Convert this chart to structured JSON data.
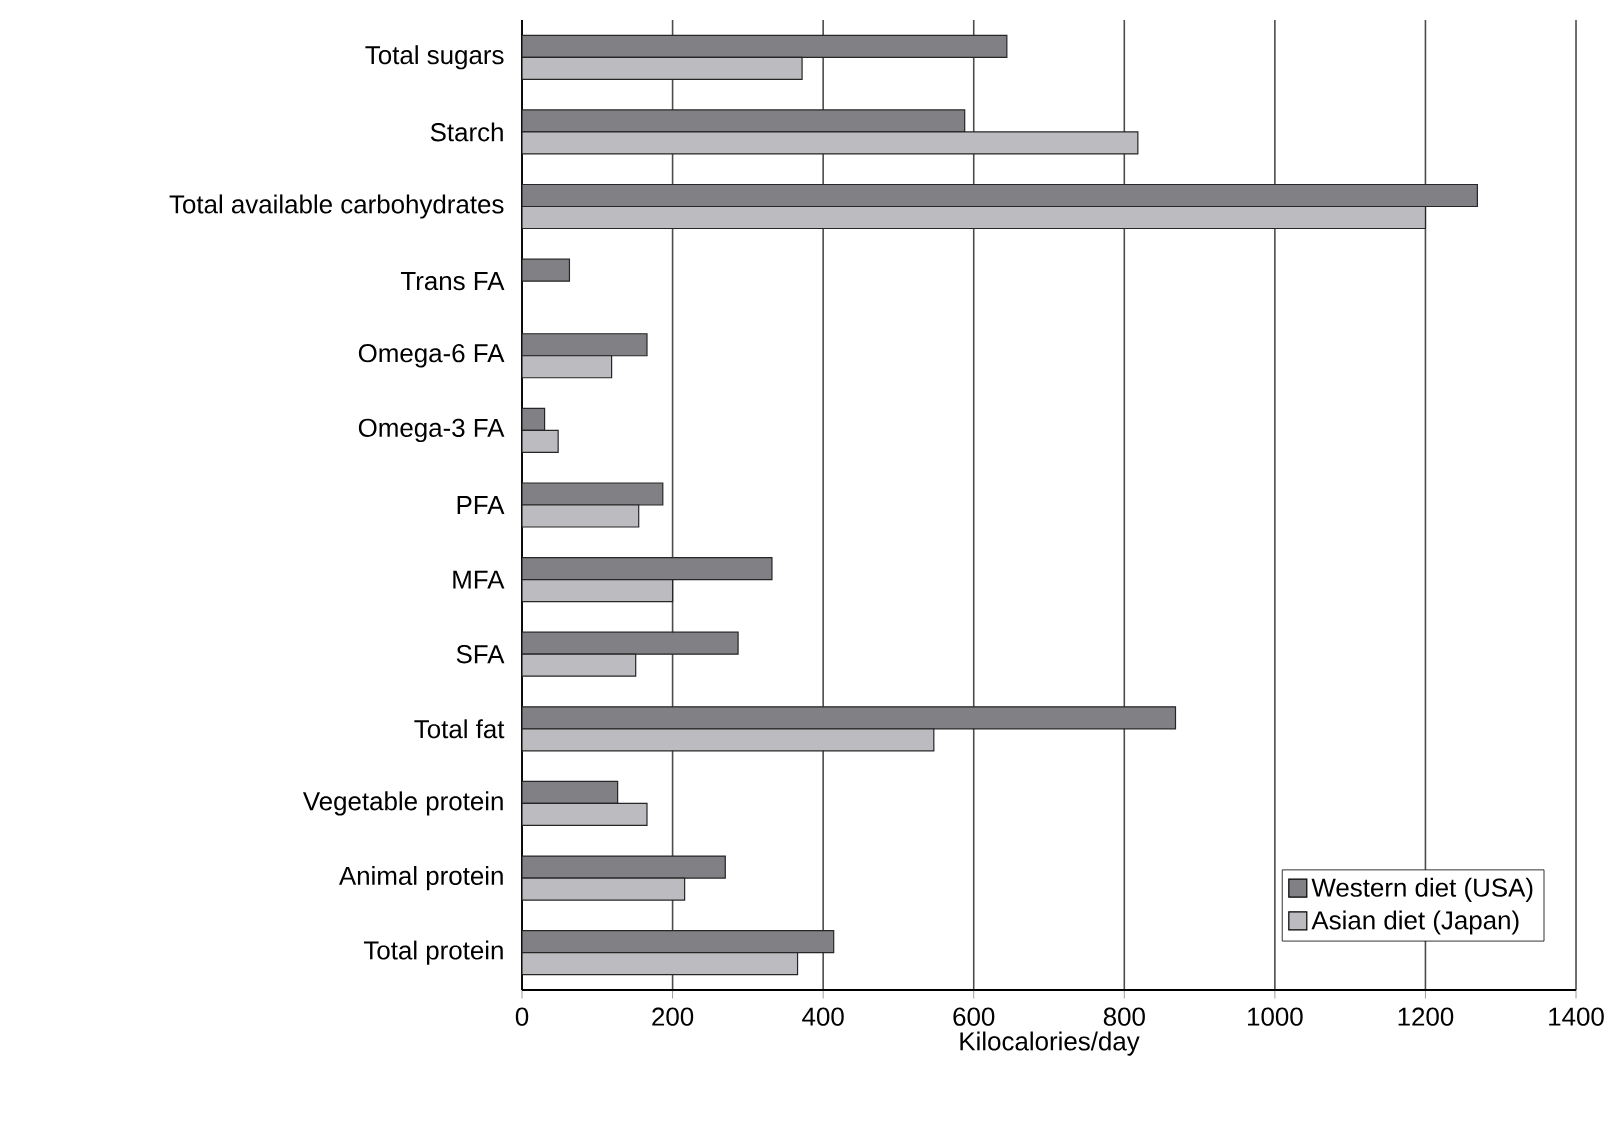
{
  "chart_data": {
    "type": "bar",
    "orientation": "horizontal",
    "xlabel": "Kilocalories/day",
    "categories": [
      "Total sugars",
      "Starch",
      "Total available carbohydrates",
      "Trans FA",
      "Omega-6 FA",
      "Omega-3 FA",
      "PFA",
      "MFA",
      "SFA",
      "Total fat",
      "Vegetable protein",
      "Animal protein",
      "Total protein"
    ],
    "series": [
      {
        "name": "Western diet (USA)",
        "color": "#808085",
        "values": [
          644,
          588,
          1269,
          63,
          166,
          30,
          187,
          332,
          287,
          868,
          127,
          270,
          414
        ]
      },
      {
        "name": "Asian diet (Japan)",
        "color": "#bcbcc0",
        "values": [
          372,
          818,
          1200,
          null,
          119,
          48,
          155,
          200,
          151,
          547,
          166,
          216,
          366
        ]
      }
    ],
    "xlim": [
      0,
      1400
    ],
    "xticks": [
      0,
      200,
      400,
      600,
      800,
      1000,
      1200,
      1400
    ],
    "grid": "x",
    "legend": "bottom right"
  }
}
